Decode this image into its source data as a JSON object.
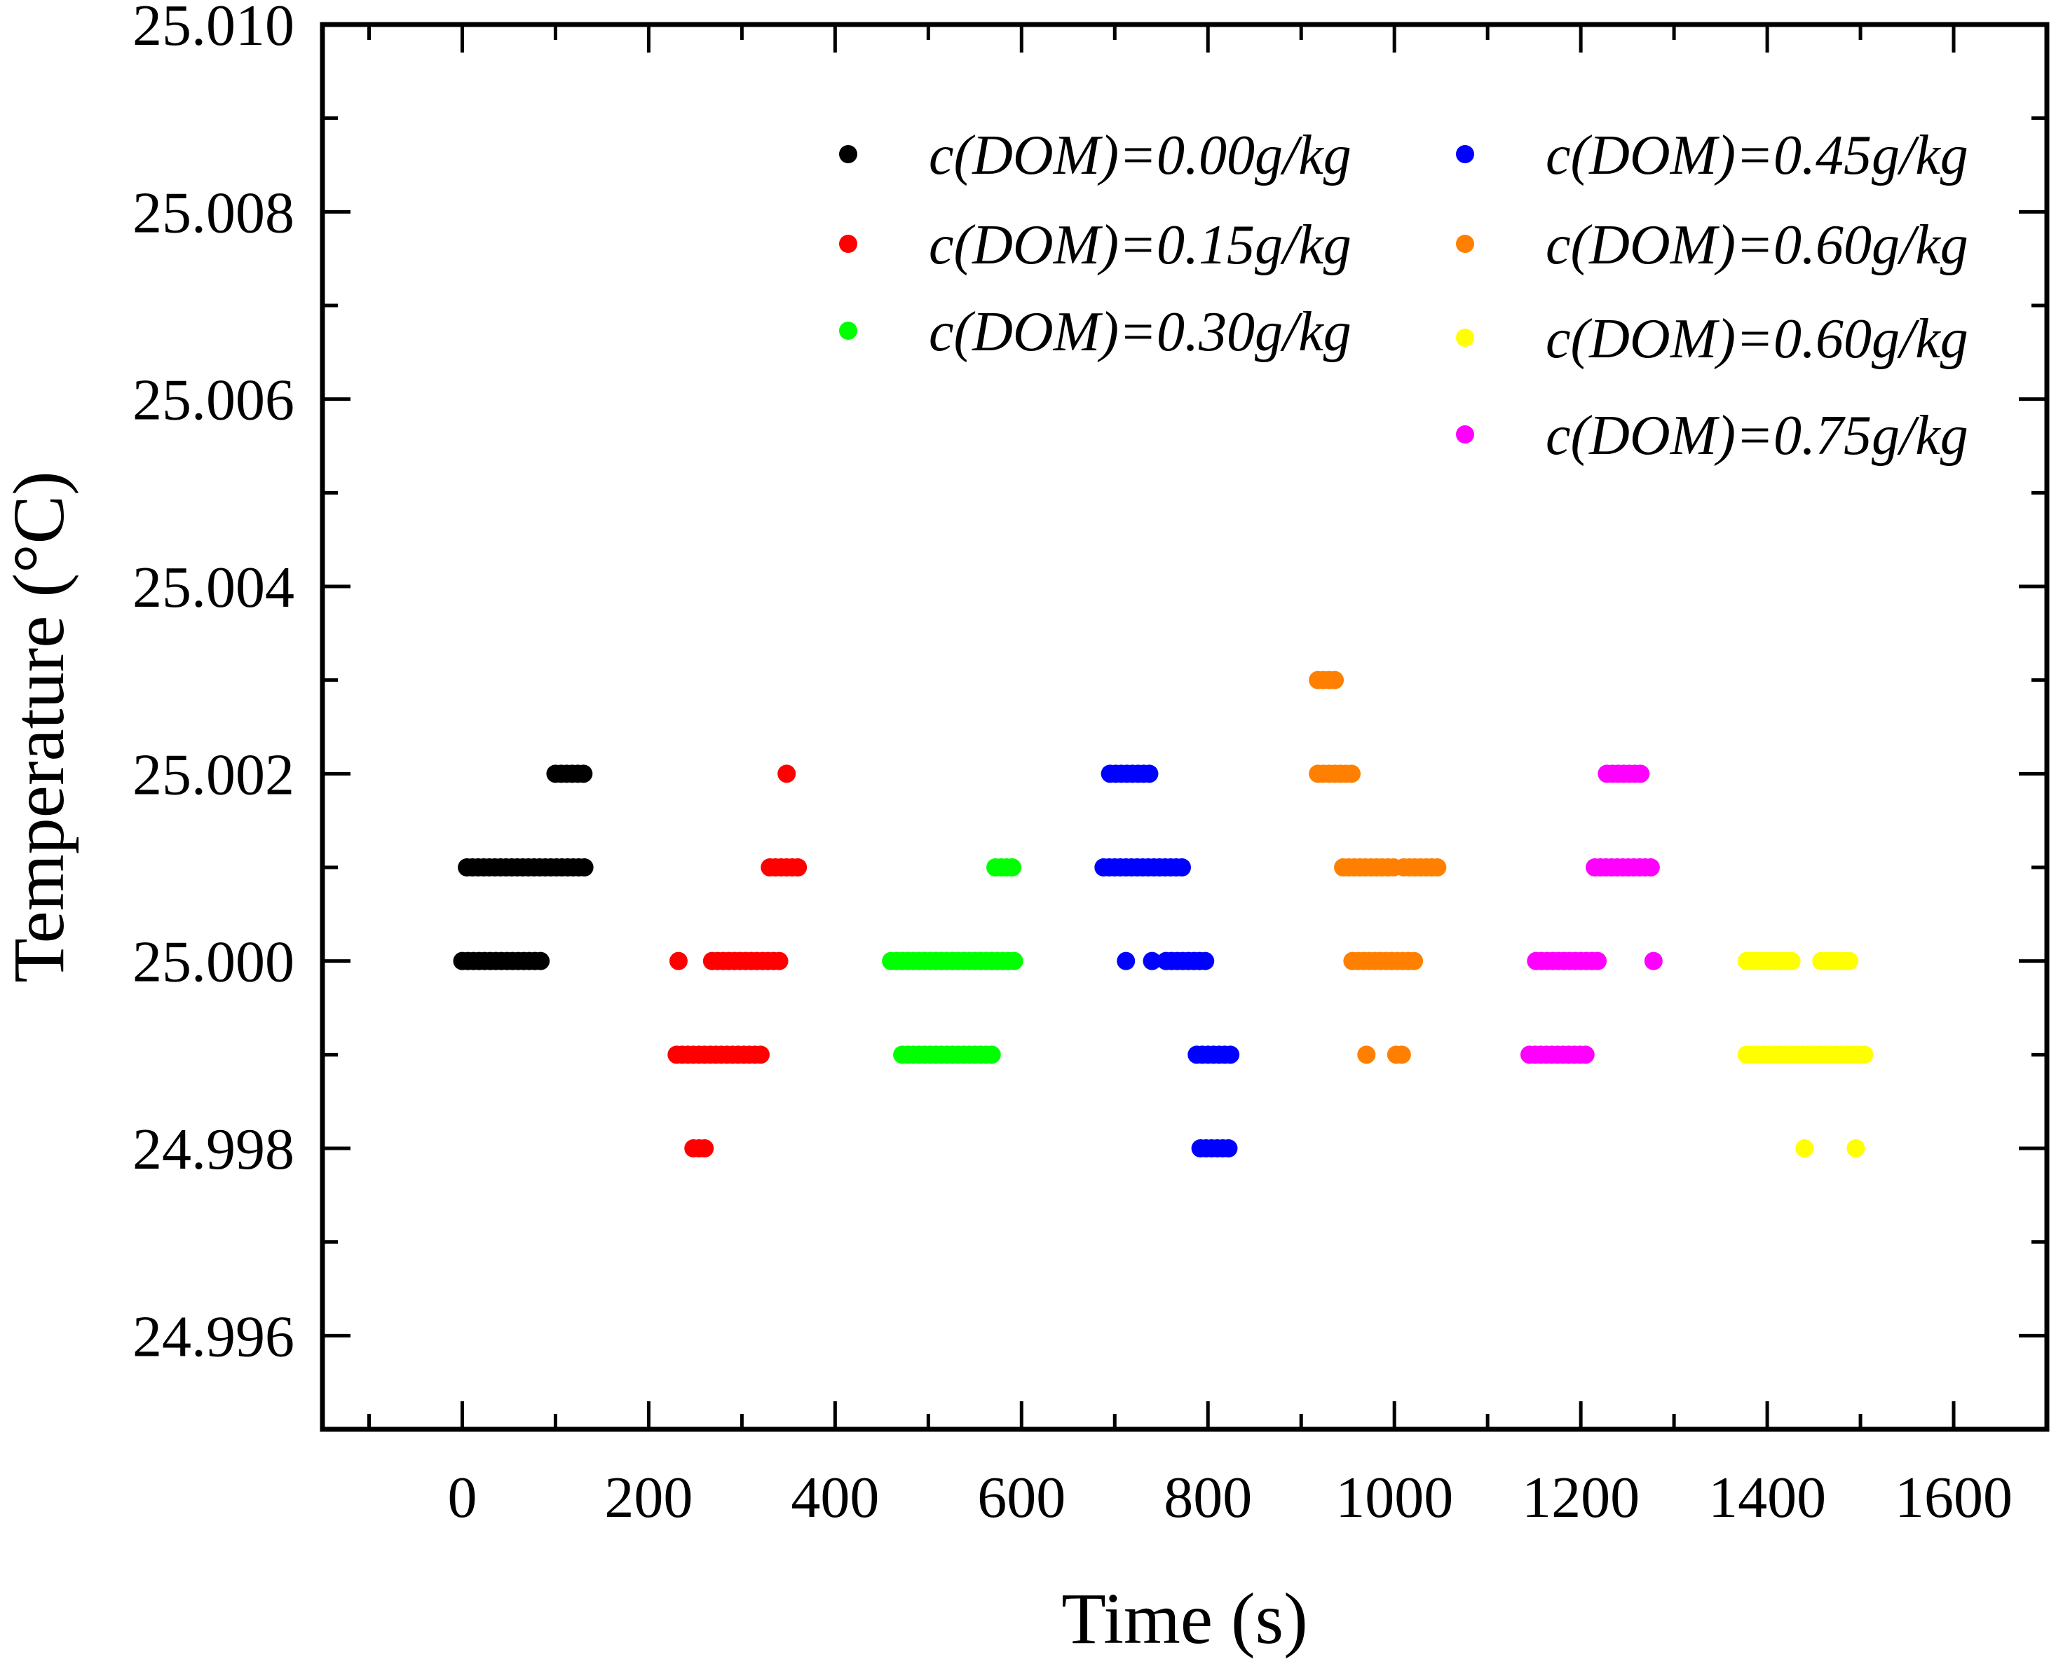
{
  "chart_data": {
    "type": "scatter",
    "title": "",
    "xlabel": "Time (s)",
    "ylabel": "Temperature (°C)",
    "xlim": [
      -150,
      1700
    ],
    "ylim": [
      24.995,
      25.01
    ],
    "xticks": [
      0,
      200,
      400,
      600,
      800,
      1000,
      1200,
      1400,
      1600
    ],
    "xtick_labels": [
      "0",
      "200",
      "400",
      "600",
      "800",
      "1000",
      "1200",
      "1400",
      "1600"
    ],
    "yticks": [
      24.996,
      24.998,
      25.0,
      25.002,
      25.004,
      25.006,
      25.008,
      25.01
    ],
    "ytick_labels": [
      "24.996",
      "24.998",
      "25.000",
      "25.002",
      "25.004",
      "25.006",
      "25.008",
      "25.010"
    ],
    "grid": false,
    "legend_position": "top-right",
    "series": [
      {
        "name": "c(DOM)=0.00g/kg",
        "color": "#000000",
        "points": [
          {
            "x": 0,
            "y": 25.0,
            "x_end": 85
          },
          {
            "x": 5,
            "y": 25.001,
            "x_end": 135
          },
          {
            "x": 100,
            "y": 25.002,
            "x_end": 135
          }
        ]
      },
      {
        "name": "c(DOM)=0.15g/kg",
        "color": "#ff0000",
        "points": [
          {
            "x": 232,
            "y": 25.0
          },
          {
            "x": 268,
            "y": 25.0,
            "x_end": 345
          },
          {
            "x": 348,
            "y": 25.002
          },
          {
            "x": 330,
            "y": 25.001,
            "x_end": 362
          },
          {
            "x": 230,
            "y": 24.999,
            "x_end": 322
          },
          {
            "x": 248,
            "y": 24.998,
            "x_end": 265
          }
        ]
      },
      {
        "name": "c(DOM)=0.30g/kg",
        "color": "#00ff00",
        "points": [
          {
            "x": 460,
            "y": 25.0,
            "x_end": 592
          },
          {
            "x": 472,
            "y": 24.999,
            "x_end": 572
          },
          {
            "x": 572,
            "y": 25.001,
            "x_end": 592
          }
        ]
      },
      {
        "name": "c(DOM)=0.45g/kg",
        "color": "#0000ff",
        "points": [
          {
            "x": 695,
            "y": 25.002,
            "x_end": 742
          },
          {
            "x": 688,
            "y": 25.001,
            "x_end": 772
          },
          {
            "x": 712,
            "y": 25.0
          },
          {
            "x": 740,
            "y": 25.0
          },
          {
            "x": 755,
            "y": 25.0,
            "x_end": 802
          },
          {
            "x": 788,
            "y": 24.999,
            "x_end": 825
          },
          {
            "x": 792,
            "y": 24.998,
            "x_end": 825
          }
        ]
      },
      {
        "name": "c(DOM)=0.60g/kg",
        "color": "#ff8000",
        "points": [
          {
            "x": 918,
            "y": 25.003,
            "x_end": 938
          },
          {
            "x": 918,
            "y": 25.002,
            "x_end": 958
          },
          {
            "x": 945,
            "y": 25.001,
            "x_end": 1000
          },
          {
            "x": 1010,
            "y": 25.001,
            "x_end": 1048
          },
          {
            "x": 955,
            "y": 25.0,
            "x_end": 1025
          },
          {
            "x": 970,
            "y": 24.999
          },
          {
            "x": 1002,
            "y": 24.999,
            "x_end": 1012
          }
        ]
      },
      {
        "name": "c(DOM)=0.60g/kg",
        "color": "#ffff00",
        "points": [
          {
            "x": 1378,
            "y": 25.0,
            "x_end": 1430
          },
          {
            "x": 1458,
            "y": 25.0,
            "x_end": 1488
          },
          {
            "x": 1378,
            "y": 24.999,
            "x_end": 1508
          },
          {
            "x": 1440,
            "y": 24.998
          },
          {
            "x": 1495,
            "y": 24.998
          }
        ]
      },
      {
        "name": "c(DOM)=0.75g/kg",
        "color": "#ff00ff",
        "points": [
          {
            "x": 1228,
            "y": 25.002,
            "x_end": 1268
          },
          {
            "x": 1215,
            "y": 25.001,
            "x_end": 1278
          },
          {
            "x": 1152,
            "y": 25.0,
            "x_end": 1218
          },
          {
            "x": 1278,
            "y": 25.0
          },
          {
            "x": 1145,
            "y": 24.999,
            "x_end": 1208
          }
        ]
      }
    ]
  }
}
